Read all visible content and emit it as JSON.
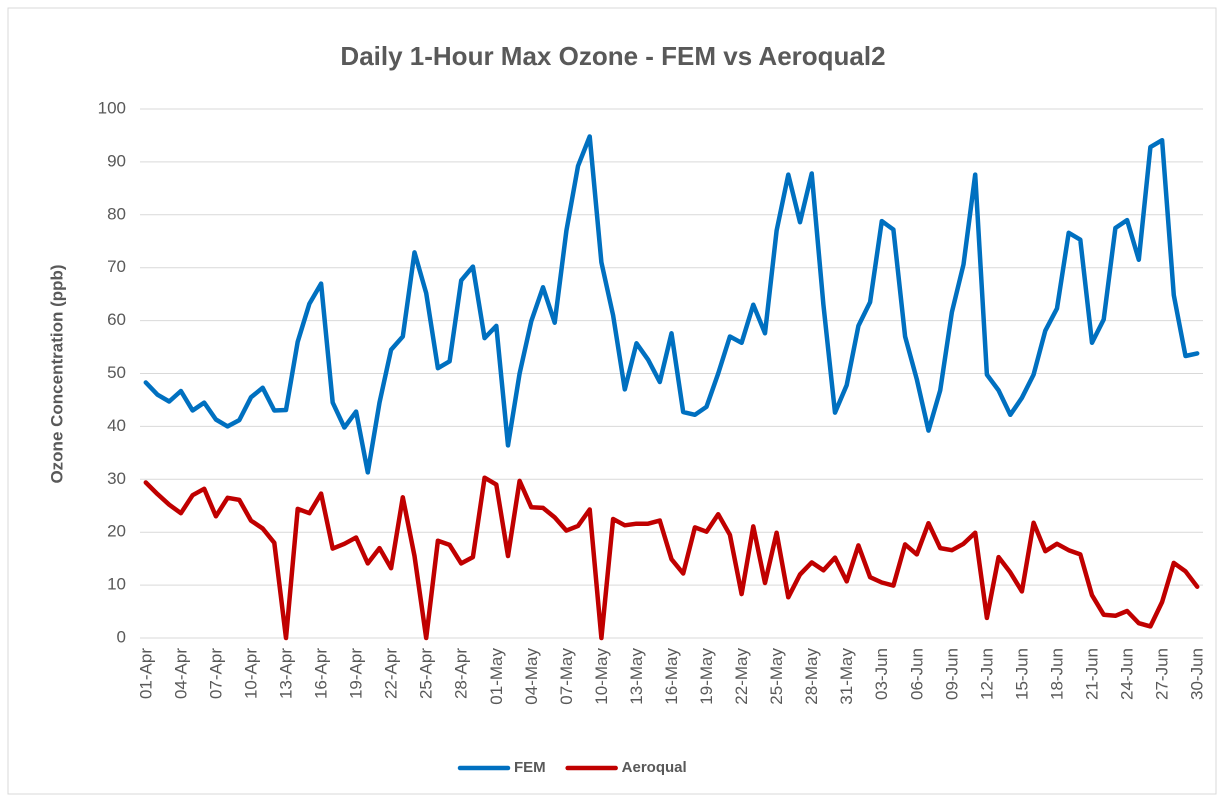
{
  "chart_data": {
    "type": "line",
    "title": "Daily 1-Hour Max Ozone - FEM vs Aeroqual2",
    "y_label": "Ozone Concentration  (ppb)",
    "categories": [
      "01-Apr",
      null,
      null,
      "04-Apr",
      null,
      null,
      "07-Apr",
      null,
      null,
      "10-Apr",
      null,
      null,
      "13-Apr",
      null,
      null,
      "16-Apr",
      null,
      null,
      "19-Apr",
      null,
      null,
      "22-Apr",
      null,
      null,
      "25-Apr",
      null,
      null,
      "28-Apr",
      null,
      null,
      "01-May",
      null,
      null,
      "04-May",
      null,
      null,
      "07-May",
      null,
      null,
      "10-May",
      null,
      null,
      "13-May",
      null,
      null,
      "16-May",
      null,
      null,
      "19-May",
      null,
      null,
      "22-May",
      null,
      null,
      "25-May",
      null,
      null,
      "28-May",
      null,
      null,
      "31-May",
      null,
      null,
      "03-Jun",
      null,
      null,
      "06-Jun",
      null,
      null,
      "09-Jun",
      null,
      null,
      "12-Jun",
      null,
      null,
      "15-Jun",
      null,
      null,
      "18-Jun",
      null,
      null,
      "21-Jun",
      null,
      null,
      "24-Jun",
      null,
      null,
      "27-Jun",
      null,
      null,
      "30-Jun"
    ],
    "series": [
      {
        "name": "FEM",
        "color": "#0070c0",
        "values": [
          48.3,
          46,
          44.7,
          46.7,
          43,
          44.5,
          41.3,
          40,
          41.2,
          45.5,
          47.3,
          43,
          43.1,
          56,
          63.2,
          67,
          44.5,
          39.8,
          42.8,
          31.3,
          44.5,
          54.5,
          57,
          72.9,
          65.2,
          51,
          52.3,
          67.6,
          70.2,
          56.7,
          59,
          36.4,
          50,
          59.9,
          66.3,
          59.6,
          77,
          89.2,
          94.8,
          71,
          61,
          47,
          55.7,
          52.6,
          48.4,
          57.6,
          42.7,
          42.2,
          43.7,
          50,
          57,
          55.8,
          63,
          57.6,
          77,
          87.6,
          78.6,
          87.8,
          63,
          42.6,
          47.8,
          59,
          63.5,
          78.8,
          77.2,
          57,
          48.9,
          39.2,
          46.8,
          61.6,
          70.6,
          87.6,
          49.8,
          46.8,
          42.2,
          45.4,
          49.8,
          58.1,
          62.3,
          76.6,
          75.3,
          55.8,
          60.2,
          77.5,
          79,
          71.5,
          92.8,
          94.1,
          64.8,
          53.3,
          53.8
        ]
      },
      {
        "name": "Aeroqual",
        "color": "#c00000",
        "values": [
          29.4,
          27.2,
          25.2,
          23.6,
          27,
          28.2,
          23,
          26.5,
          26.1,
          22.2,
          20.7,
          18,
          0,
          24.4,
          23.6,
          27.3,
          16.9,
          17.8,
          19,
          14.1,
          17,
          13.2,
          26.6,
          15.5,
          0,
          18.4,
          17.6,
          14.1,
          15.3,
          30.3,
          29,
          15.5,
          29.7,
          24.7,
          24.6,
          22.8,
          20.3,
          21.2,
          24.3,
          0,
          22.5,
          21.3,
          21.6,
          21.6,
          22.2,
          14.9,
          12.2,
          20.9,
          20.1,
          23.4,
          19.5,
          8.3,
          21.1,
          10.4,
          19.9,
          7.7,
          12,
          14.3,
          12.8,
          15.2,
          10.7,
          17.5,
          11.5,
          10.5,
          9.9,
          17.7,
          15.8,
          21.7,
          17,
          16.6,
          17.8,
          19.9,
          3.8,
          15.3,
          12.4,
          8.8,
          21.8,
          16.4,
          17.8,
          16.6,
          15.8,
          8.1,
          4.4,
          4.2,
          5.1,
          2.8,
          2.2,
          6.8,
          14.2,
          12.6,
          9.7
        ]
      }
    ],
    "ylim": [
      0,
      100
    ],
    "yticks": [
      0,
      10,
      20,
      30,
      40,
      50,
      60,
      70,
      80,
      90,
      100
    ],
    "grid": true,
    "legend": "bottom"
  }
}
